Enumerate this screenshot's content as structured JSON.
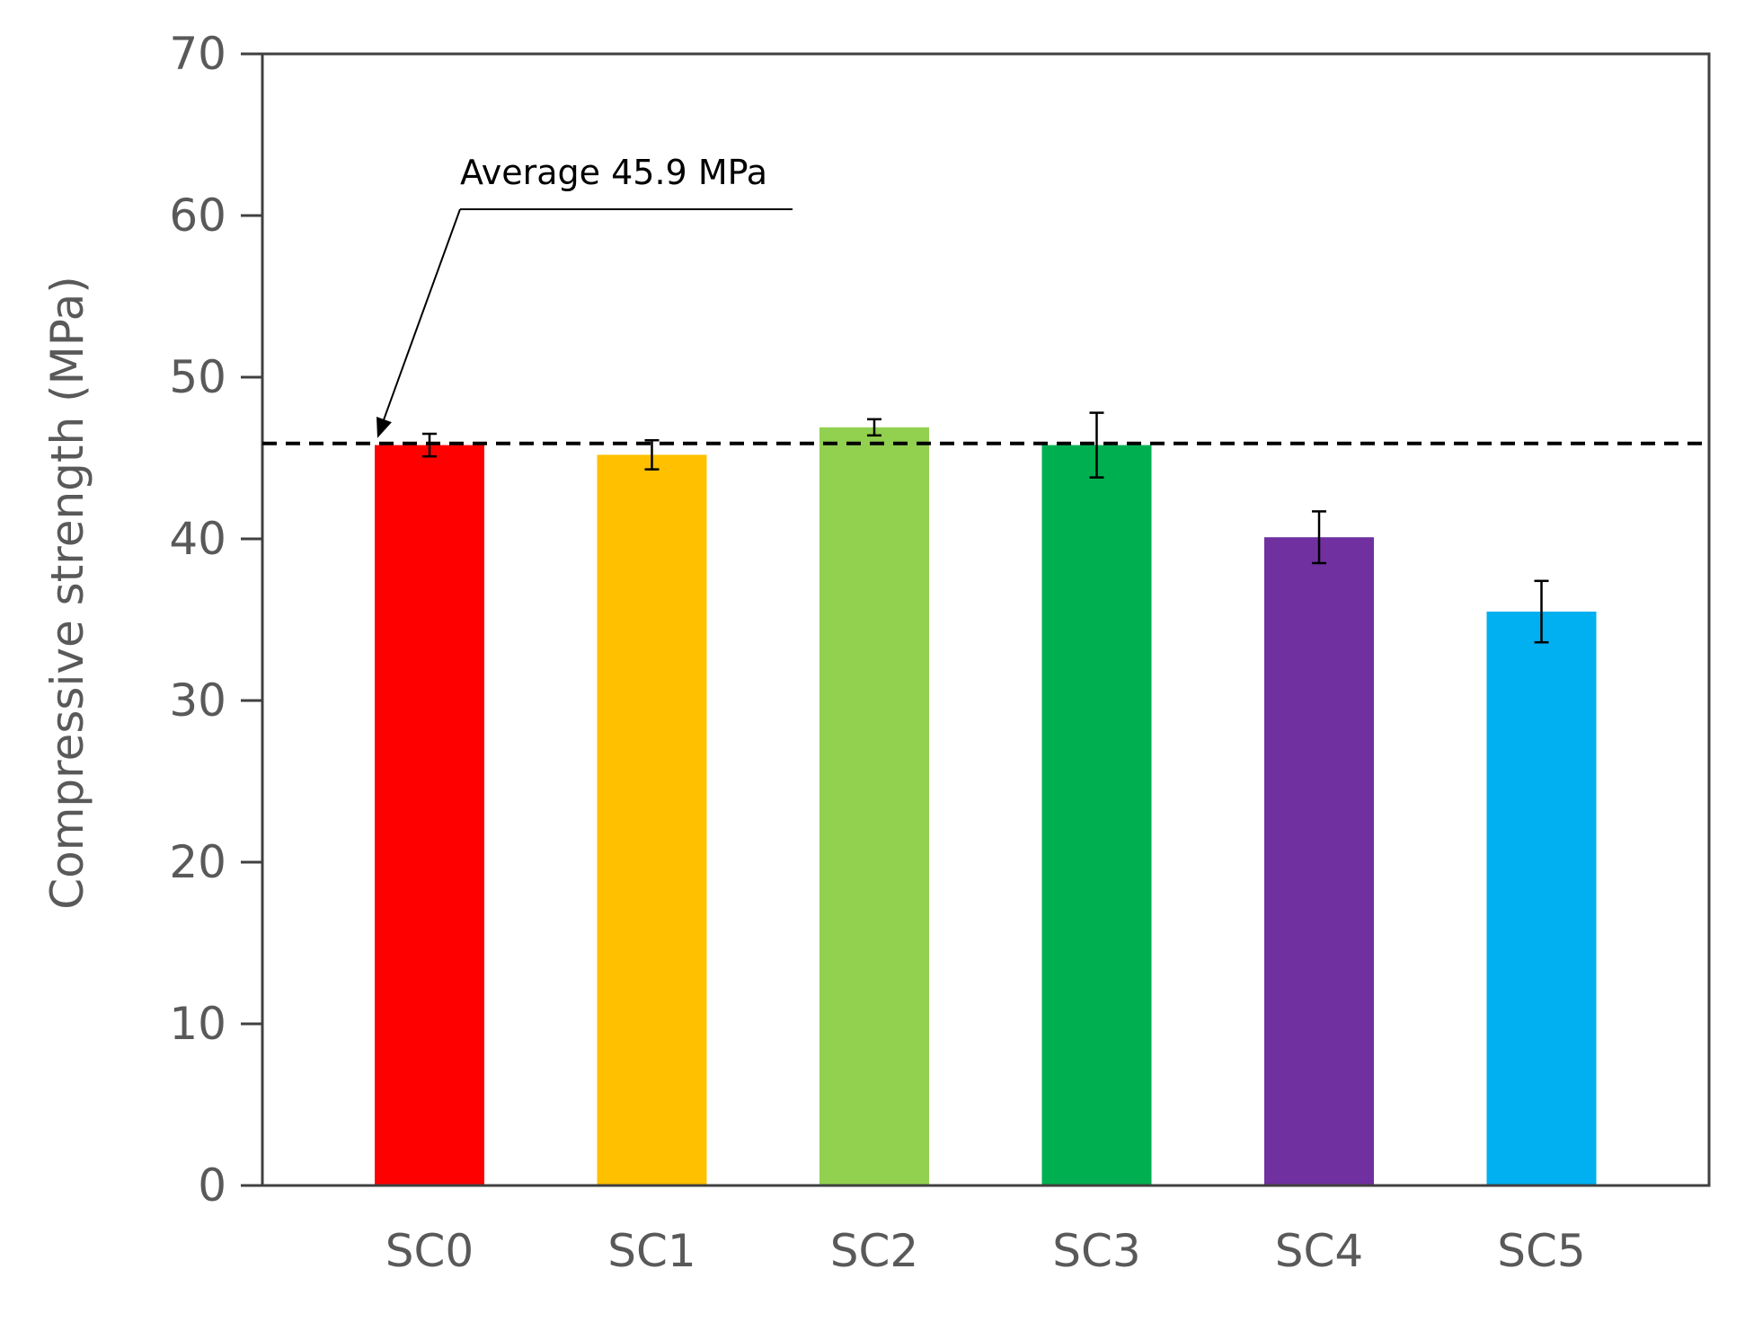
{
  "chart_data": {
    "type": "bar",
    "title": "",
    "xlabel": "",
    "ylabel": "Compressive strength (MPa)",
    "ylim": [
      0,
      70
    ],
    "yticks": [
      0,
      10,
      20,
      30,
      40,
      50,
      60,
      70
    ],
    "grid": false,
    "categories": [
      "SC0",
      "SC1",
      "SC2",
      "SC3",
      "SC4",
      "SC5"
    ],
    "values": [
      45.8,
      45.2,
      46.9,
      45.8,
      40.1,
      35.5
    ],
    "errors": [
      0.7,
      0.9,
      0.5,
      2.0,
      1.6,
      1.9
    ],
    "colors": [
      "#ff0000",
      "#ffc000",
      "#92d050",
      "#00b050",
      "#7030a0",
      "#00b0f0"
    ],
    "reference_line": {
      "value": 45.9,
      "style": "dashed",
      "color": "#000000"
    },
    "annotation": {
      "text": "Average 45.9 MPa",
      "points_to_category": "SC0"
    }
  }
}
